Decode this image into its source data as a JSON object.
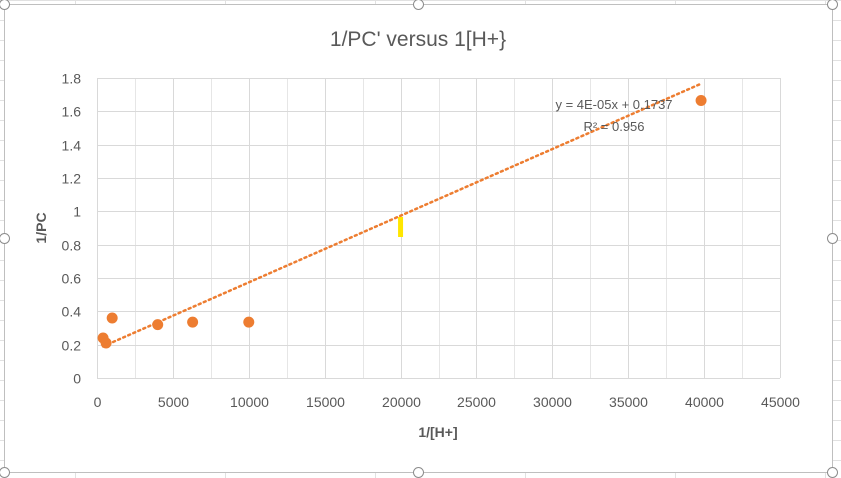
{
  "chart_data": {
    "type": "scatter",
    "title": "1/PC' versus 1[H+}",
    "xlabel": "1/[H+]",
    "ylabel": "1/PC",
    "xlim": [
      0,
      45000
    ],
    "ylim": [
      0,
      1.8
    ],
    "xticks": [
      0,
      5000,
      10000,
      15000,
      20000,
      25000,
      30000,
      35000,
      40000,
      45000
    ],
    "yticks": [
      "0",
      "0.2",
      "0.4",
      "0.6",
      "0.8",
      "1",
      "1.2",
      "1.4",
      "1.6",
      "1.8"
    ],
    "x_minor_gridlines": true,
    "grid": true,
    "legend": "none",
    "series": [
      {
        "color": "#ED7D31",
        "points": [
          {
            "x": 400,
            "y": 0.24
          },
          {
            "x": 600,
            "y": 0.21
          },
          {
            "x": 1000,
            "y": 0.36
          },
          {
            "x": 4000,
            "y": 0.32
          },
          {
            "x": 6300,
            "y": 0.335
          },
          {
            "x": 10000,
            "y": 0.335
          },
          {
            "x": 39800,
            "y": 1.665
          }
        ]
      }
    ],
    "trendline": {
      "type": "linear",
      "slope": 4e-05,
      "intercept": 0.1737,
      "x_range": [
        400,
        39800
      ],
      "color": "#ED7D31",
      "style": "dotted",
      "equation_label": "y = 4E-05x + 0.1737",
      "r2_label": "R² = 0.956"
    },
    "highlight_marker": {
      "x": 20000,
      "y": 0.9,
      "color": "#FFE600"
    }
  }
}
